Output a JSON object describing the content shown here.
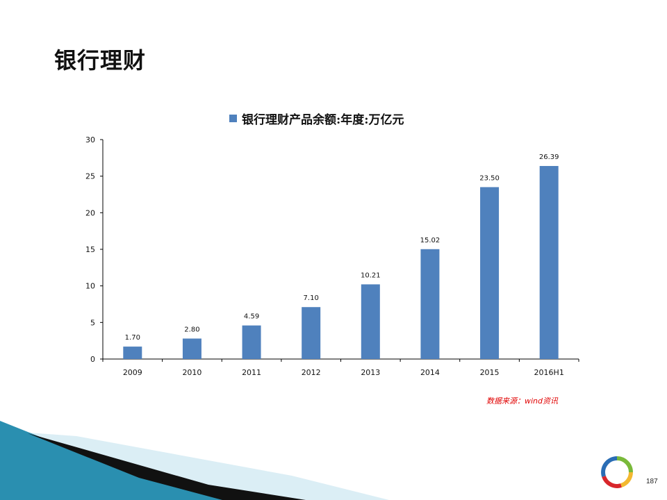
{
  "slide": {
    "title": "银行理财",
    "source_note": "数据来源：wind资讯",
    "page_number": "187"
  },
  "colors": {
    "bar": "#4f81bd",
    "source_note": "#e00000",
    "deco_teal": "#2a8fb0",
    "deco_light": "#c9e3ee",
    "logo_red": "#d8262b",
    "logo_green": "#79b93a",
    "logo_blue": "#2a6db5",
    "logo_yellow": "#f2b830"
  },
  "chart_data": {
    "type": "bar",
    "categories": [
      "2009",
      "2010",
      "2011",
      "2012",
      "2013",
      "2014",
      "2015",
      "2016H1"
    ],
    "series": [
      {
        "name": "银行理财产品余额:年度:万亿元",
        "values": [
          1.7,
          2.8,
          4.59,
          7.1,
          10.21,
          15.02,
          23.5,
          26.39
        ],
        "labels": [
          "1.70",
          "2.80",
          "4.59",
          "7.10",
          "10.21",
          "15.02",
          "23.50",
          "26.39"
        ]
      }
    ],
    "title": "",
    "xlabel": "",
    "ylabel": "",
    "ylim": [
      0,
      30
    ],
    "yticks": [
      "0",
      "5",
      "10",
      "15",
      "20",
      "25",
      "30"
    ],
    "legend_position": "top",
    "grid": false
  }
}
